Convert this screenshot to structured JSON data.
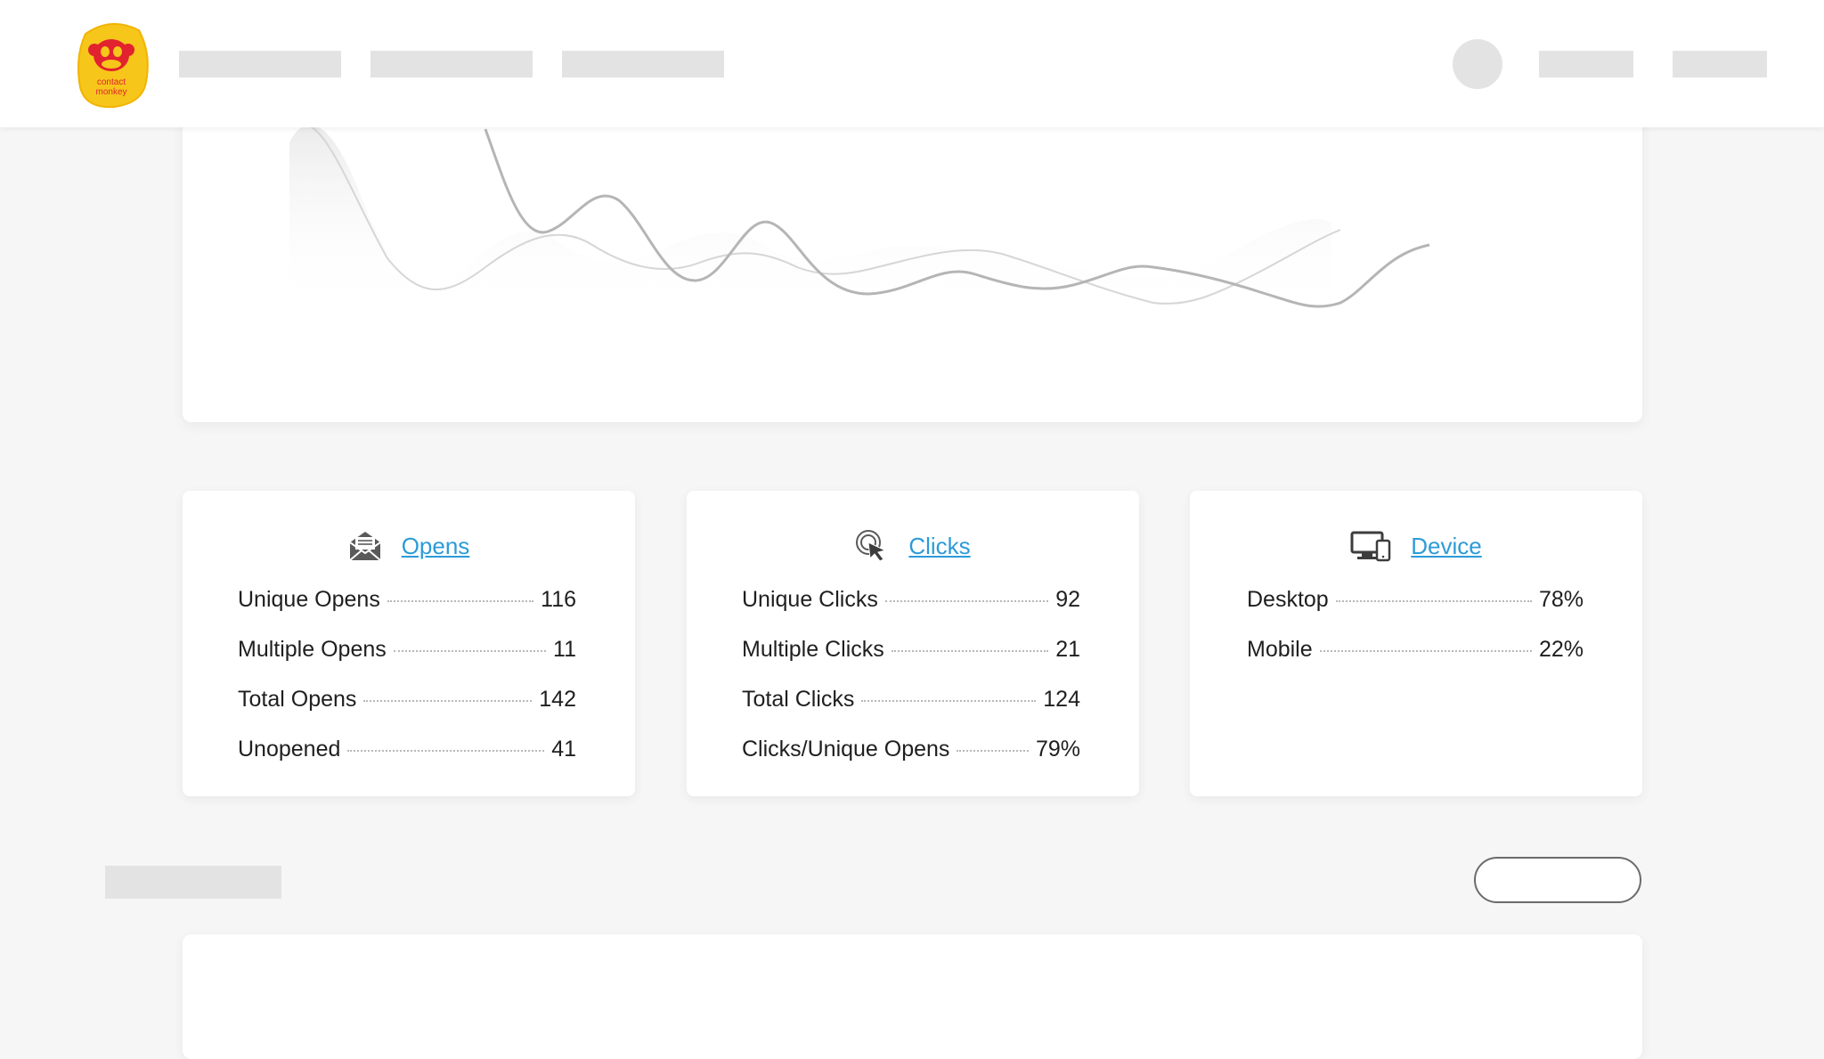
{
  "header": {
    "logo": {
      "icon": "monkey-logo-icon",
      "text_line1": "contact",
      "text_line2": "monkey",
      "color": "#f6c61b",
      "accent": "#e2222f"
    }
  },
  "chart": {
    "type": "area",
    "line_color": "#b5b5b5",
    "fill_color": "#efefef"
  },
  "cards": {
    "opens": {
      "title": "Opens",
      "icon": "envelope-open-icon",
      "rows": [
        {
          "label": "Unique Opens",
          "value": "116"
        },
        {
          "label": "Multiple Opens",
          "value": "11"
        },
        {
          "label": "Total Opens",
          "value": "142"
        },
        {
          "label": "Unopened",
          "value": "41"
        }
      ]
    },
    "clicks": {
      "title": "Clicks",
      "icon": "cursor-click-icon",
      "rows": [
        {
          "label": "Unique Clicks",
          "value": "92"
        },
        {
          "label": "Multiple Clicks",
          "value": "21"
        },
        {
          "label": "Total Clicks",
          "value": "124"
        },
        {
          "label": "Clicks/Unique Opens",
          "value": "79%"
        }
      ]
    },
    "device": {
      "title": "Device",
      "icon": "devices-icon",
      "rows": [
        {
          "label": "Desktop",
          "value": "78%"
        },
        {
          "label": "Mobile",
          "value": "22%"
        }
      ]
    }
  },
  "colors": {
    "link": "#2d9bd8",
    "placeholder": "#e3e3e3",
    "background": "#f6f6f6"
  }
}
